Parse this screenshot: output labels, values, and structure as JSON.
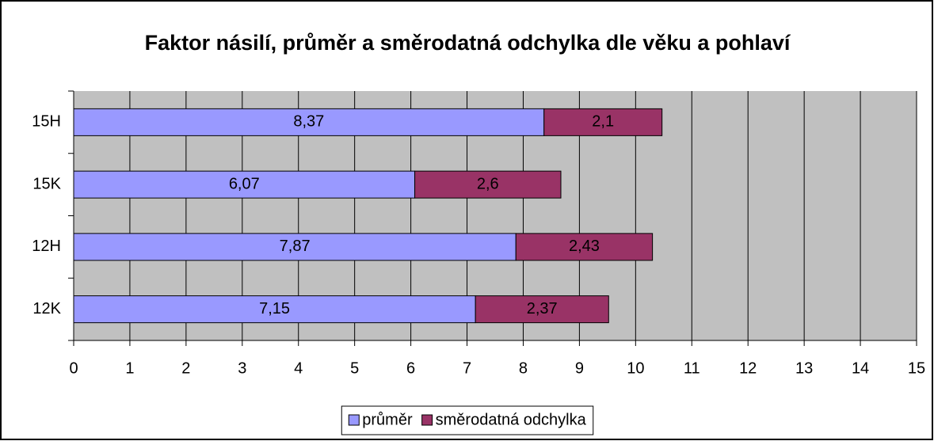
{
  "chart_data": {
    "type": "stacked_hbar",
    "title": "Faktor násilí, průměr a směrodatná odchylka dle věku a pohlaví",
    "categories": [
      "12K",
      "12H",
      "15K",
      "15H"
    ],
    "series": [
      {
        "name": "průměr",
        "color": "#9999ff",
        "values": [
          7.15,
          7.87,
          6.07,
          8.37
        ],
        "value_labels": [
          "7,15",
          "7,87",
          "6,07",
          "8,37"
        ]
      },
      {
        "name": "směrodatná odchylka",
        "color": "#993366",
        "values": [
          2.37,
          2.43,
          2.6,
          2.1
        ],
        "value_labels": [
          "2,37",
          "2,43",
          "2,6",
          "2,1"
        ]
      }
    ],
    "xlim": [
      0,
      15
    ],
    "xticks": [
      0,
      1,
      2,
      3,
      4,
      5,
      6,
      7,
      8,
      9,
      10,
      11,
      12,
      13,
      14,
      15
    ],
    "grid": true,
    "legend": "bottom"
  }
}
